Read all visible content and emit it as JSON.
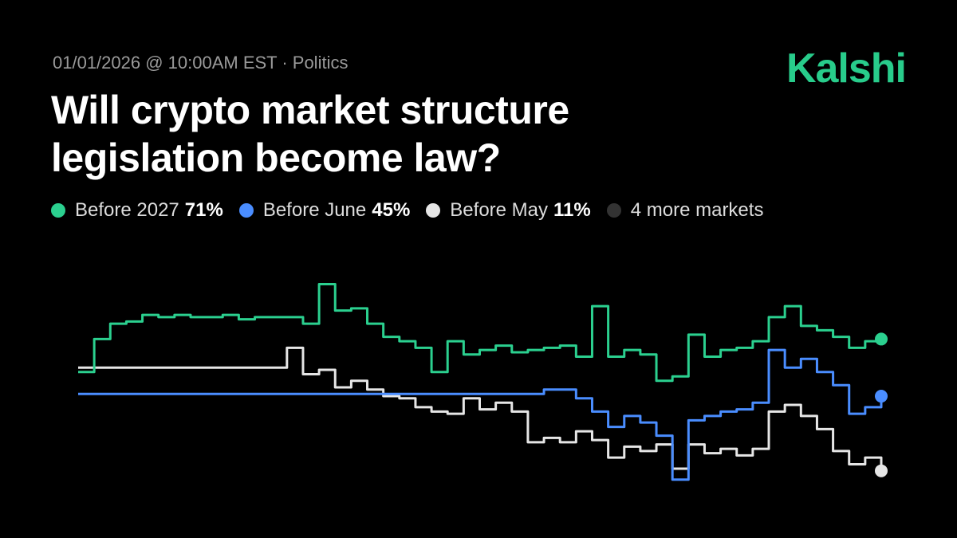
{
  "brand": "Kalshi",
  "chart_data": {
    "type": "line",
    "step": true,
    "subtitle": "01/01/2026 @ 10:00AM EST · Politics",
    "title": "Will crypto market structure legislation become law?",
    "more_markets": "4 more markets",
    "more_markets_color": "#333333",
    "ylim": [
      4,
      102
    ],
    "series": [
      {
        "name": "Before 2027",
        "color": "#2bd08f",
        "current_label": "71%",
        "values": [
          56,
          71,
          78,
          79,
          82,
          81,
          82,
          81,
          81,
          82,
          80,
          81,
          81,
          81,
          78,
          96,
          84,
          85,
          78,
          72,
          70,
          67,
          56,
          70,
          64,
          66,
          68,
          65,
          66,
          67,
          68,
          63,
          86,
          63,
          66,
          64,
          52,
          54,
          73,
          63,
          66,
          67,
          70,
          81,
          86,
          77,
          75,
          72,
          67,
          70,
          71
        ]
      },
      {
        "name": "Before June",
        "color": "#4a8dff",
        "current_label": "45%",
        "values": [
          46,
          46,
          46,
          46,
          46,
          46,
          46,
          46,
          46,
          46,
          46,
          46,
          46,
          46,
          46,
          46,
          46,
          46,
          46,
          46,
          46,
          46,
          46,
          46,
          46,
          46,
          46,
          46,
          46,
          48,
          48,
          44,
          38,
          31,
          36,
          33,
          27,
          7,
          34,
          36,
          38,
          39,
          42,
          66,
          58,
          62,
          56,
          50,
          37,
          40,
          45
        ]
      },
      {
        "name": "Before May",
        "color": "#e6e6e6",
        "current_label": "11%",
        "values": [
          58,
          58,
          58,
          58,
          58,
          58,
          58,
          58,
          58,
          58,
          58,
          58,
          58,
          67,
          55,
          57,
          49,
          52,
          48,
          45,
          44,
          40,
          38,
          37,
          44,
          39,
          42,
          38,
          24,
          26,
          24,
          29,
          25,
          17,
          22,
          20,
          23,
          12,
          23,
          19,
          21,
          18,
          21,
          38,
          41,
          36,
          30,
          20,
          14,
          17,
          11
        ]
      }
    ]
  }
}
